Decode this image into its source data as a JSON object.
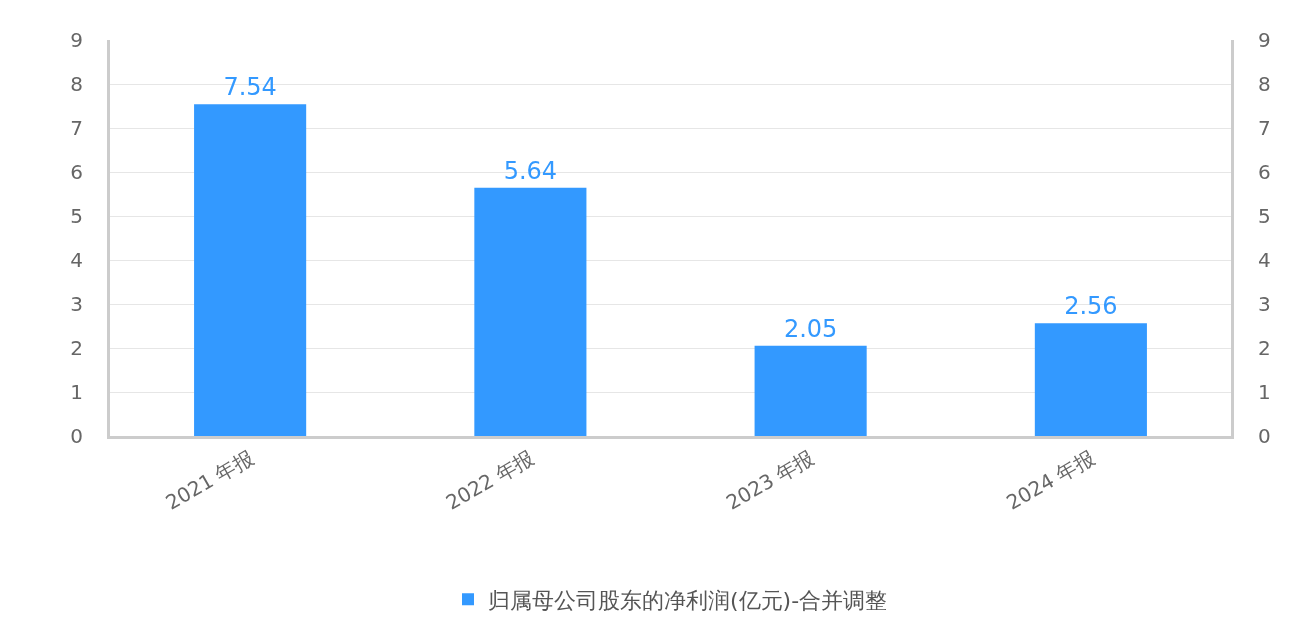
{
  "chart_data": {
    "type": "bar",
    "categories": [
      "2021 年报",
      "2022 年报",
      "2023 年报",
      "2024 年报"
    ],
    "series": [
      {
        "name": "归属母公司股东的净利润(亿元)-合并调整",
        "color": "#3399ff",
        "values": [
          7.54,
          5.64,
          2.05,
          2.56
        ]
      }
    ],
    "ylim": [
      0,
      9
    ],
    "yticks": [
      0,
      1,
      2,
      3,
      4,
      5,
      6,
      7,
      8,
      9
    ],
    "y2lim": [
      0,
      9
    ],
    "y2ticks": [
      0,
      1,
      2,
      3,
      4,
      5,
      6,
      7,
      8,
      9
    ],
    "data_labels": true,
    "grid": "y",
    "legend": "bottom"
  }
}
